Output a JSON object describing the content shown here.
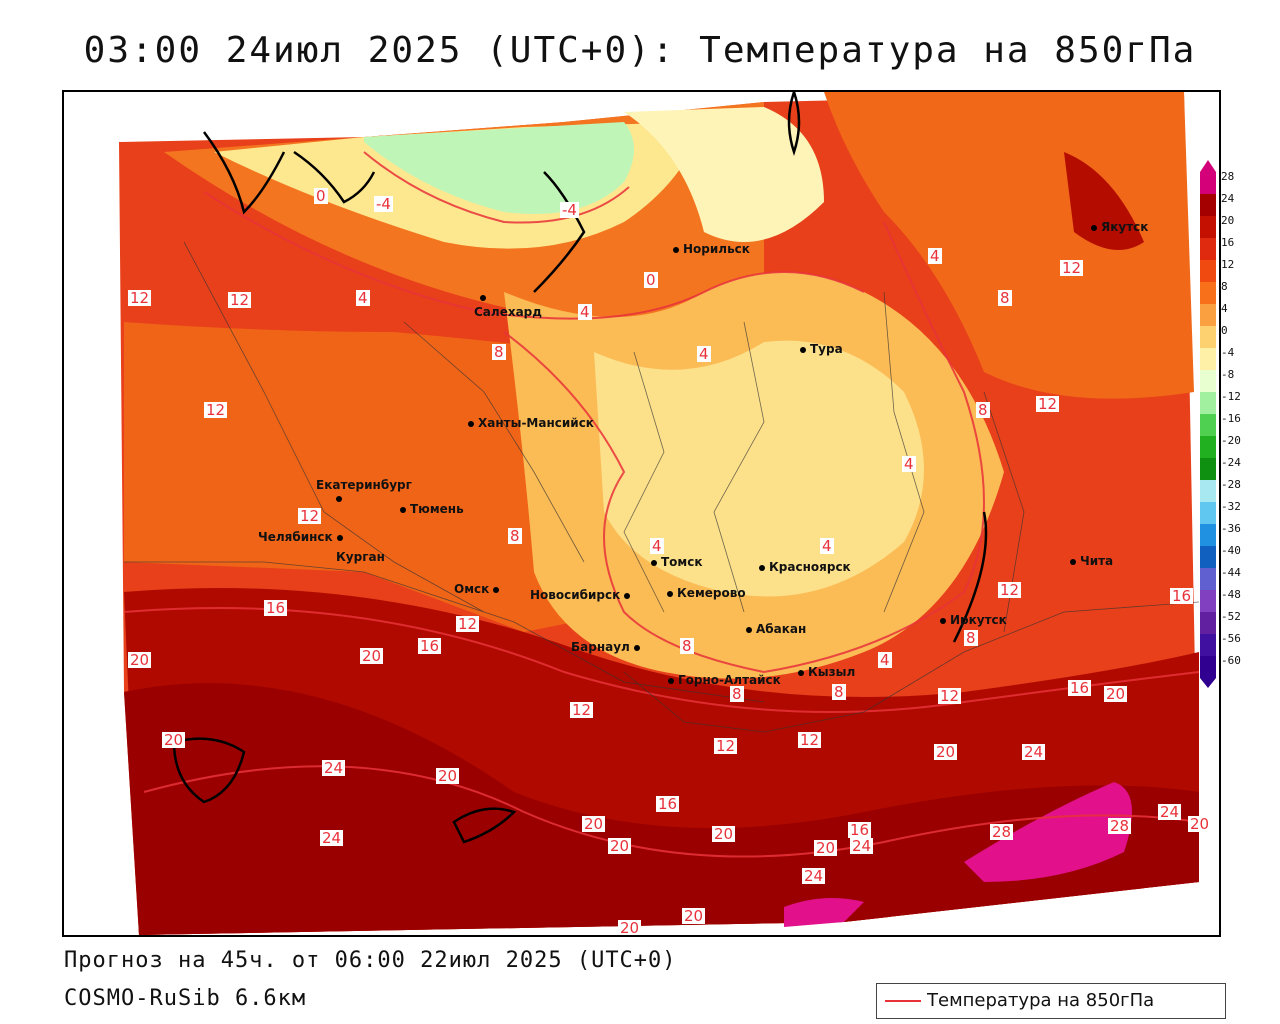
{
  "title": "03:00 24июл 2025 (UTC+0): Температура на 850гПа",
  "forecast_info": "Прогноз на 45ч. от 06:00 22июл 2025 (UTC+0)",
  "model": "COSMO-RuSib 6.6км",
  "legend_label": "Температура на 850гПа",
  "colorbar": {
    "ticks": [
      "28",
      "24",
      "20",
      "16",
      "12",
      "8",
      "4",
      "0",
      "-4",
      "-8",
      "-12",
      "-16",
      "-20",
      "-24",
      "-28",
      "-32",
      "-36",
      "-40",
      "-44",
      "-48",
      "-52",
      "-56",
      "-60"
    ],
    "colors": [
      "#d4007a",
      "#a50000",
      "#c41000",
      "#e02a10",
      "#f04a10",
      "#f8701a",
      "#fba040",
      "#fdd070",
      "#fff0a8",
      "#e8ffd0",
      "#a0f0a0",
      "#50d050",
      "#20b020",
      "#109010",
      "#a8e8f0",
      "#60c8f0",
      "#2090e0",
      "#1060c0",
      "#6060d0",
      "#8040c0",
      "#6020a0",
      "#4010a0",
      "#300090"
    ]
  },
  "cities": [
    {
      "name": "Норильск"
    },
    {
      "name": "Якутск"
    },
    {
      "name": "Салехард"
    },
    {
      "name": "Тура"
    },
    {
      "name": "Ханты-Мансийск"
    },
    {
      "name": "Екатеринбург"
    },
    {
      "name": "Тюмень"
    },
    {
      "name": "Челябинск"
    },
    {
      "name": "Курган"
    },
    {
      "name": "Омск"
    },
    {
      "name": "Новосибирск"
    },
    {
      "name": "Томск"
    },
    {
      "name": "Кемерово"
    },
    {
      "name": "Красноярск"
    },
    {
      "name": "Барнаул"
    },
    {
      "name": "Абакан"
    },
    {
      "name": "Горно-Алтайск"
    },
    {
      "name": "Кызыл"
    },
    {
      "name": "Иркутск"
    },
    {
      "name": "Чита"
    }
  ],
  "contour_labels": [
    "0",
    "-4",
    "-4",
    "0",
    "4",
    "4",
    "4",
    "4",
    "4",
    "4",
    "4",
    "4",
    "8",
    "8",
    "8",
    "8",
    "8",
    "8",
    "8",
    "8",
    "12",
    "12",
    "12",
    "12",
    "12",
    "12",
    "12",
    "12",
    "12",
    "12",
    "12",
    "12",
    "16",
    "16",
    "16",
    "16",
    "16",
    "16",
    "20",
    "20",
    "20",
    "20",
    "20",
    "20",
    "20",
    "20",
    "20",
    "20",
    "20",
    "20",
    "20",
    "24",
    "24",
    "24",
    "24",
    "24",
    "24",
    "28",
    "28"
  ]
}
